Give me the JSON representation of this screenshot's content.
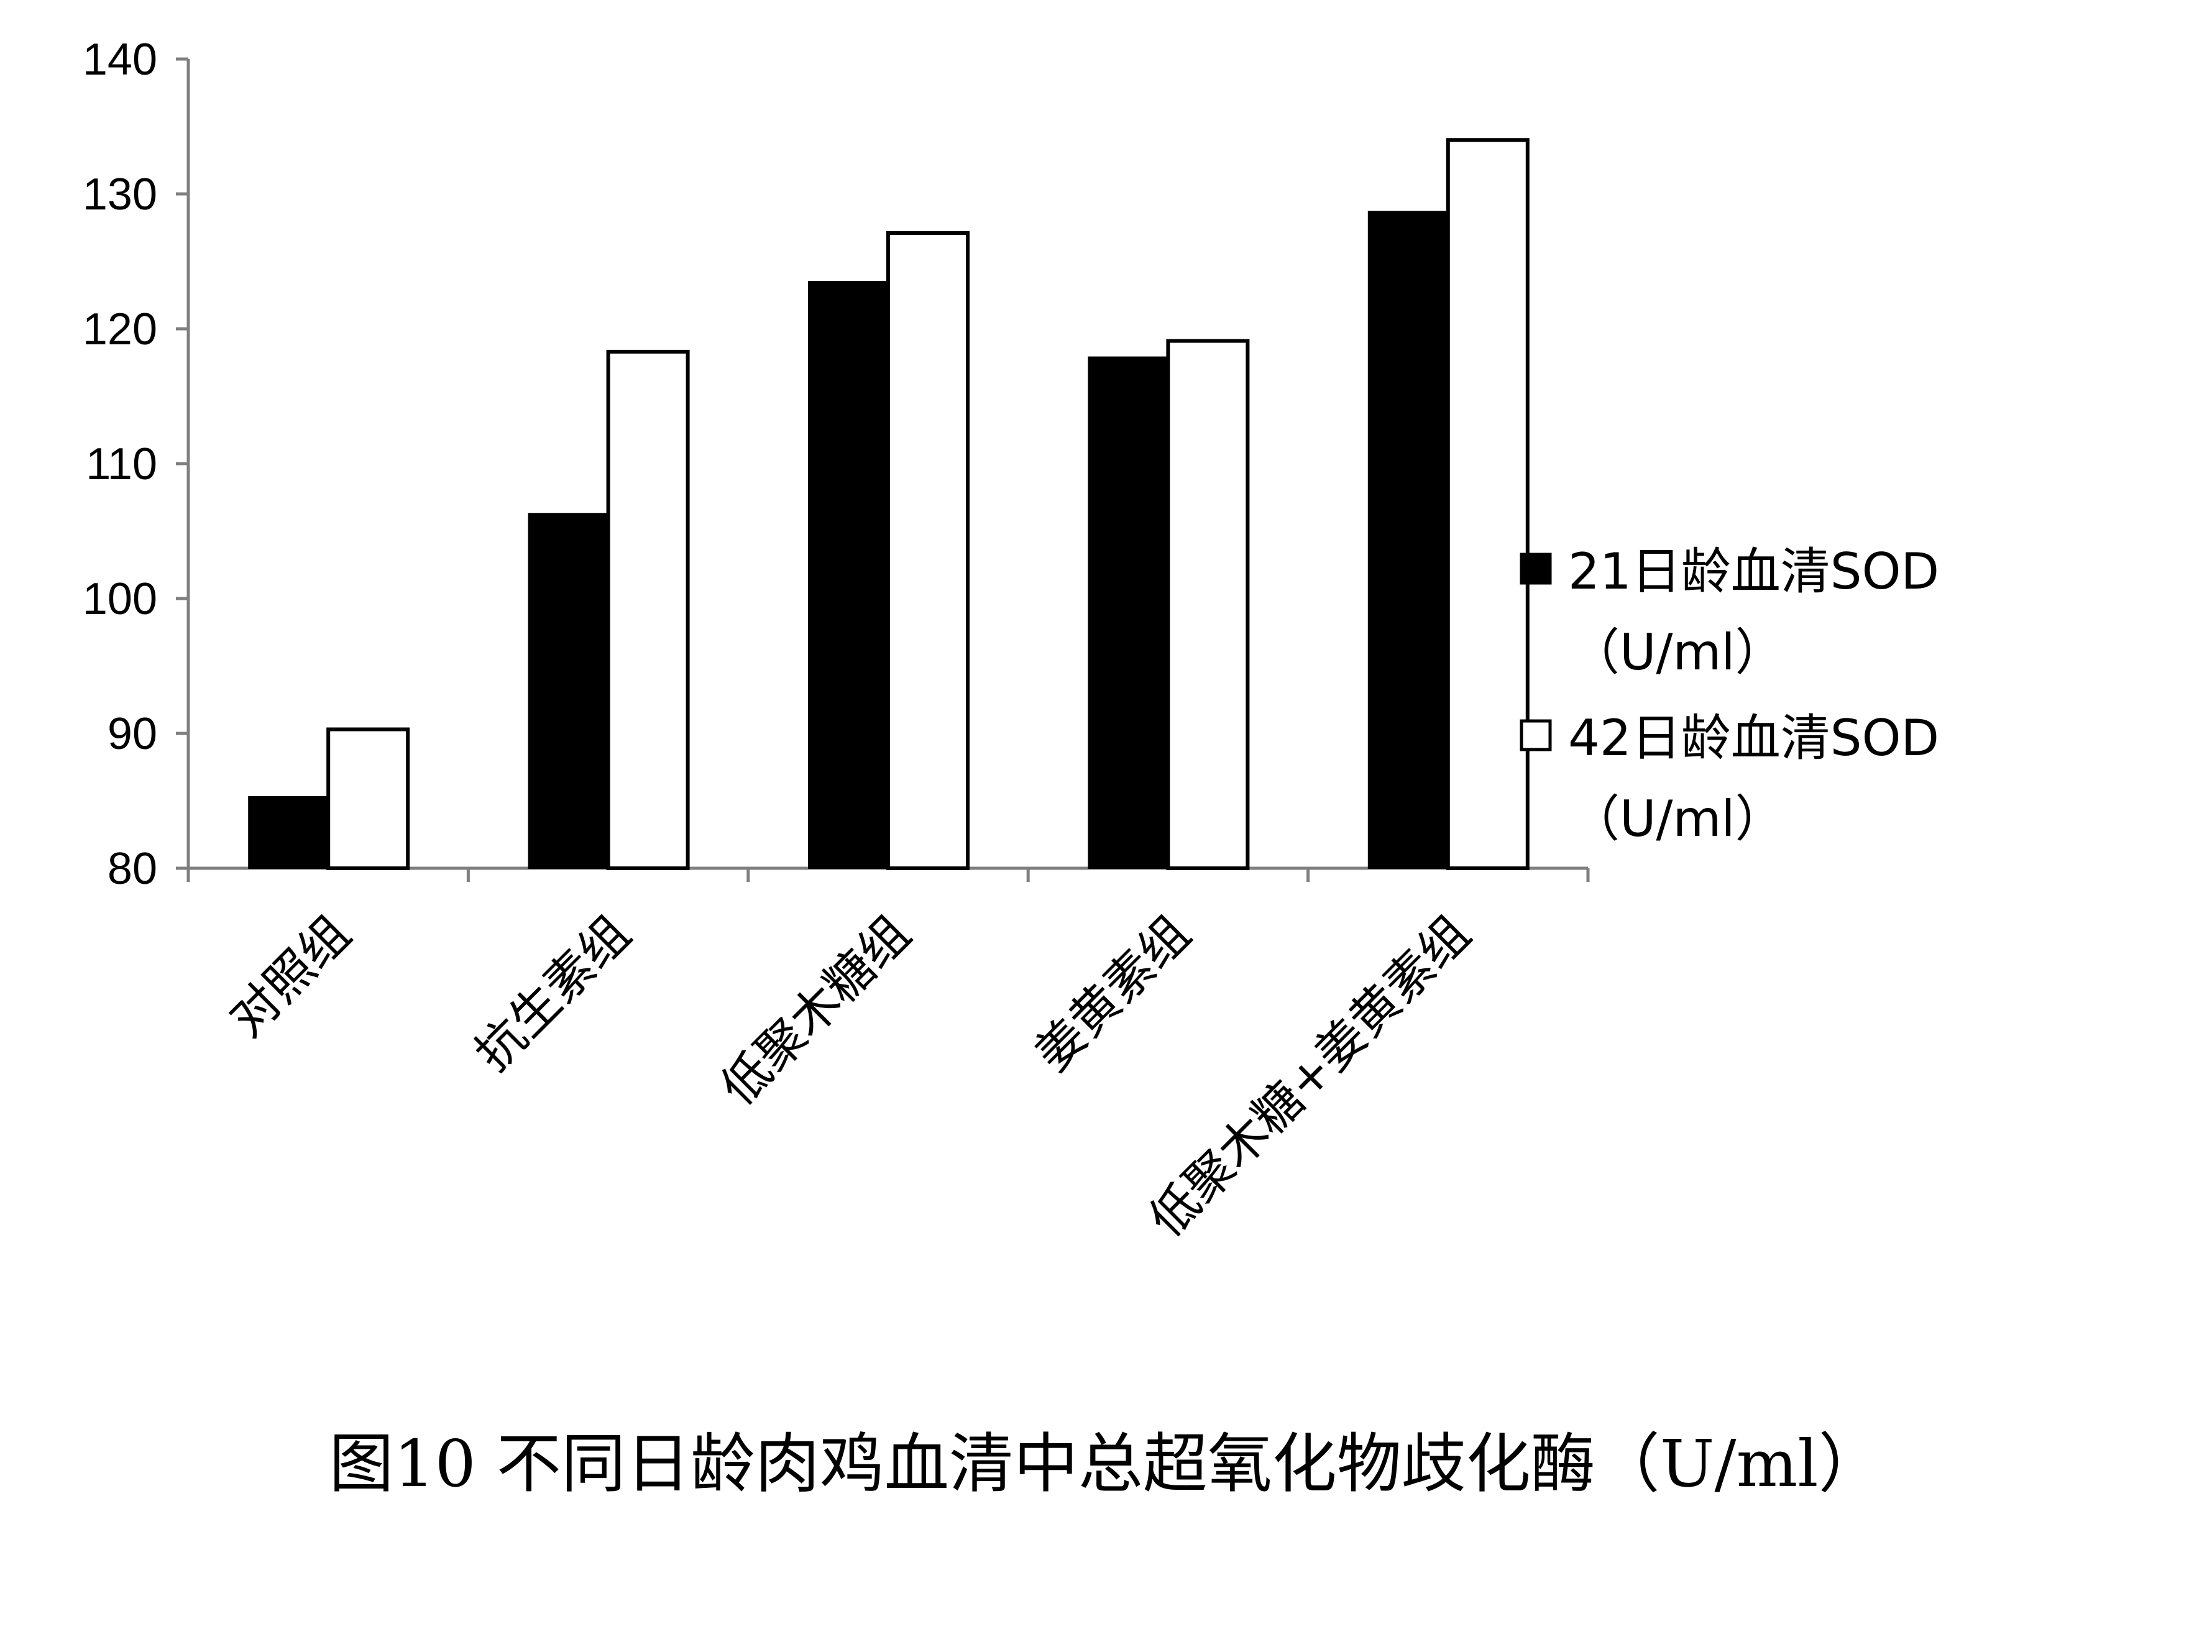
{
  "chart_data": {
    "type": "bar",
    "categories": [
      "对照组",
      "抗生素组",
      "低聚木糖组",
      "姜黄素组",
      "低聚木糖+姜黄素组"
    ],
    "series": [
      {
        "name": "21日龄血清SOD（U/ml）",
        "legend_line1": "21日龄血清SOD",
        "legend_line2": "（U/ml）",
        "color": "#000000",
        "fill": "solid",
        "values": [
          85.3,
          106.3,
          123.5,
          117.9,
          128.7
        ]
      },
      {
        "name": "42日龄血清SOD（U/ml）",
        "legend_line1": "42日龄血清SOD",
        "legend_line2": "（U/ml）",
        "color": "#ffffff",
        "fill": "outline",
        "values": [
          90.3,
          118.3,
          127.1,
          119.1,
          134.0
        ]
      }
    ],
    "ylim": [
      80,
      140
    ],
    "yticks": [
      80,
      90,
      100,
      110,
      120,
      130,
      140
    ],
    "xlabel": "",
    "ylabel": "",
    "grid": false,
    "legend_position": "right"
  },
  "caption": "图10 不同日龄肉鸡血清中总超氧化物歧化酶（U/ml）"
}
